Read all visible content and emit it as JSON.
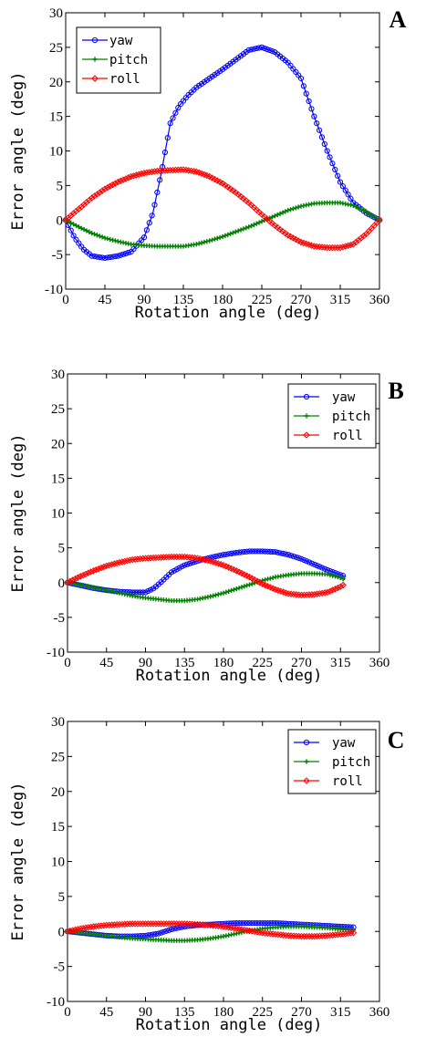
{
  "chart_data": [
    {
      "panel": "A",
      "type": "line",
      "xlabel": "Rotation angle (deg)",
      "ylabel": "Error angle (deg)",
      "xlim": [
        0,
        360
      ],
      "ylim": [
        -10,
        30
      ],
      "xticks": [
        0,
        45,
        90,
        135,
        180,
        225,
        270,
        315,
        360
      ],
      "yticks": [
        -10,
        -5,
        0,
        5,
        10,
        15,
        20,
        25,
        30
      ],
      "grid": false,
      "legend_position": "top-left",
      "series": [
        {
          "name": "yaw",
          "color": "#0000ff",
          "marker": "circle",
          "x": [
            0,
            10,
            20,
            30,
            45,
            60,
            75,
            90,
            100,
            110,
            120,
            130,
            140,
            150,
            165,
            180,
            195,
            210,
            225,
            240,
            255,
            270,
            285,
            300,
            315,
            330,
            345,
            360
          ],
          "y": [
            0,
            -2.5,
            -4.2,
            -5.2,
            -5.5,
            -5.2,
            -4.6,
            -2.5,
            1,
            7,
            14,
            16.5,
            18,
            19.2,
            20.5,
            21.8,
            23.2,
            24.6,
            25,
            24.3,
            22.8,
            20.5,
            15,
            10,
            5.5,
            2.5,
            1,
            0
          ]
        },
        {
          "name": "pitch",
          "color": "#008000",
          "marker": "plus",
          "x": [
            0,
            15,
            30,
            45,
            60,
            75,
            90,
            105,
            120,
            135,
            150,
            165,
            180,
            195,
            210,
            225,
            240,
            255,
            270,
            285,
            300,
            315,
            330,
            345,
            360
          ],
          "y": [
            0,
            -1,
            -1.9,
            -2.6,
            -3.1,
            -3.5,
            -3.7,
            -3.8,
            -3.8,
            -3.8,
            -3.5,
            -3,
            -2.4,
            -1.7,
            -1,
            -0.2,
            0.6,
            1.4,
            2,
            2.4,
            2.5,
            2.5,
            2.1,
            1.2,
            0
          ]
        },
        {
          "name": "roll",
          "color": "#ff0000",
          "marker": "diamond",
          "x": [
            0,
            15,
            30,
            45,
            60,
            75,
            90,
            105,
            120,
            135,
            150,
            165,
            180,
            195,
            210,
            225,
            240,
            255,
            270,
            285,
            300,
            315,
            330,
            345,
            360
          ],
          "y": [
            0,
            1.6,
            3.2,
            4.5,
            5.5,
            6.3,
            6.8,
            7.1,
            7.2,
            7.3,
            7,
            6.3,
            5.3,
            4,
            2.5,
            0.8,
            -0.8,
            -2.2,
            -3.2,
            -3.8,
            -4,
            -4,
            -3.5,
            -2,
            0
          ]
        }
      ]
    },
    {
      "panel": "B",
      "type": "line",
      "xlabel": "Rotation angle (deg)",
      "ylabel": "Error angle (deg)",
      "xlim": [
        0,
        360
      ],
      "ylim": [
        -10,
        30
      ],
      "xticks": [
        0,
        45,
        90,
        135,
        180,
        225,
        270,
        315,
        360
      ],
      "yticks": [
        -10,
        -5,
        0,
        5,
        10,
        15,
        20,
        25,
        30
      ],
      "grid": false,
      "legend_position": "top-right",
      "series": [
        {
          "name": "yaw",
          "color": "#0000ff",
          "marker": "circle",
          "x": [
            0,
            15,
            30,
            45,
            60,
            75,
            90,
            100,
            110,
            120,
            135,
            150,
            165,
            180,
            195,
            210,
            225,
            240,
            255,
            270,
            285,
            300,
            315,
            320
          ],
          "y": [
            0,
            -0.4,
            -0.8,
            -1.1,
            -1.3,
            -1.4,
            -1.4,
            -0.8,
            0.3,
            1.5,
            2.5,
            3.1,
            3.6,
            4,
            4.3,
            4.5,
            4.5,
            4.4,
            4,
            3.4,
            2.6,
            1.8,
            1.1,
            0.9
          ]
        },
        {
          "name": "pitch",
          "color": "#008000",
          "marker": "plus",
          "x": [
            0,
            15,
            30,
            45,
            60,
            75,
            90,
            105,
            120,
            135,
            150,
            165,
            180,
            195,
            210,
            225,
            240,
            255,
            270,
            285,
            300,
            315,
            320
          ],
          "y": [
            0,
            -0.3,
            -0.7,
            -1.1,
            -1.5,
            -1.9,
            -2.2,
            -2.4,
            -2.6,
            -2.6,
            -2.4,
            -2,
            -1.5,
            -0.9,
            -0.3,
            0.3,
            0.8,
            1.1,
            1.3,
            1.3,
            1.2,
            0.7,
            0.4
          ]
        },
        {
          "name": "roll",
          "color": "#ff0000",
          "marker": "diamond",
          "x": [
            0,
            15,
            30,
            45,
            60,
            75,
            90,
            105,
            120,
            135,
            150,
            165,
            180,
            195,
            210,
            225,
            240,
            255,
            270,
            285,
            300,
            315,
            320
          ],
          "y": [
            0,
            0.9,
            1.7,
            2.4,
            2.9,
            3.3,
            3.5,
            3.6,
            3.7,
            3.7,
            3.5,
            3.1,
            2.5,
            1.7,
            0.8,
            -0.2,
            -1,
            -1.6,
            -1.8,
            -1.7,
            -1.4,
            -0.6,
            -0.2
          ]
        }
      ]
    },
    {
      "panel": "C",
      "type": "line",
      "xlabel": "Rotation angle (deg)",
      "ylabel": "Error angle (deg)",
      "xlim": [
        0,
        360
      ],
      "ylim": [
        -10,
        30
      ],
      "xticks": [
        0,
        45,
        90,
        135,
        180,
        225,
        270,
        315,
        360
      ],
      "yticks": [
        -10,
        -5,
        0,
        5,
        10,
        15,
        20,
        25,
        30
      ],
      "grid": false,
      "legend_position": "top-right",
      "series": [
        {
          "name": "yaw",
          "color": "#0000ff",
          "marker": "circle",
          "x": [
            0,
            15,
            30,
            45,
            60,
            75,
            90,
            105,
            120,
            135,
            150,
            165,
            180,
            195,
            210,
            225,
            240,
            255,
            270,
            285,
            300,
            315,
            330
          ],
          "y": [
            0,
            -0.2,
            -0.4,
            -0.6,
            -0.7,
            -0.7,
            -0.6,
            -0.3,
            0.3,
            0.7,
            0.9,
            1,
            1.1,
            1.2,
            1.2,
            1.2,
            1.2,
            1.1,
            1,
            0.9,
            0.8,
            0.7,
            0.6
          ]
        },
        {
          "name": "pitch",
          "color": "#008000",
          "marker": "plus",
          "x": [
            0,
            15,
            30,
            45,
            60,
            75,
            90,
            105,
            120,
            135,
            150,
            165,
            180,
            195,
            210,
            225,
            240,
            255,
            270,
            285,
            300,
            315,
            330
          ],
          "y": [
            0,
            -0.2,
            -0.4,
            -0.6,
            -0.8,
            -1,
            -1.1,
            -1.2,
            -1.3,
            -1.3,
            -1.2,
            -1,
            -0.7,
            -0.3,
            0.1,
            0.4,
            0.6,
            0.7,
            0.7,
            0.6,
            0.5,
            0.3,
            0.2
          ]
        },
        {
          "name": "roll",
          "color": "#ff0000",
          "marker": "diamond",
          "x": [
            0,
            15,
            30,
            45,
            60,
            75,
            90,
            105,
            120,
            135,
            150,
            165,
            180,
            195,
            210,
            225,
            240,
            255,
            270,
            285,
            300,
            315,
            330
          ],
          "y": [
            0,
            0.4,
            0.7,
            0.9,
            1,
            1.1,
            1.1,
            1.1,
            1.1,
            1.1,
            1,
            0.9,
            0.7,
            0.4,
            0.1,
            -0.2,
            -0.4,
            -0.6,
            -0.7,
            -0.7,
            -0.6,
            -0.4,
            -0.2
          ]
        }
      ]
    }
  ]
}
